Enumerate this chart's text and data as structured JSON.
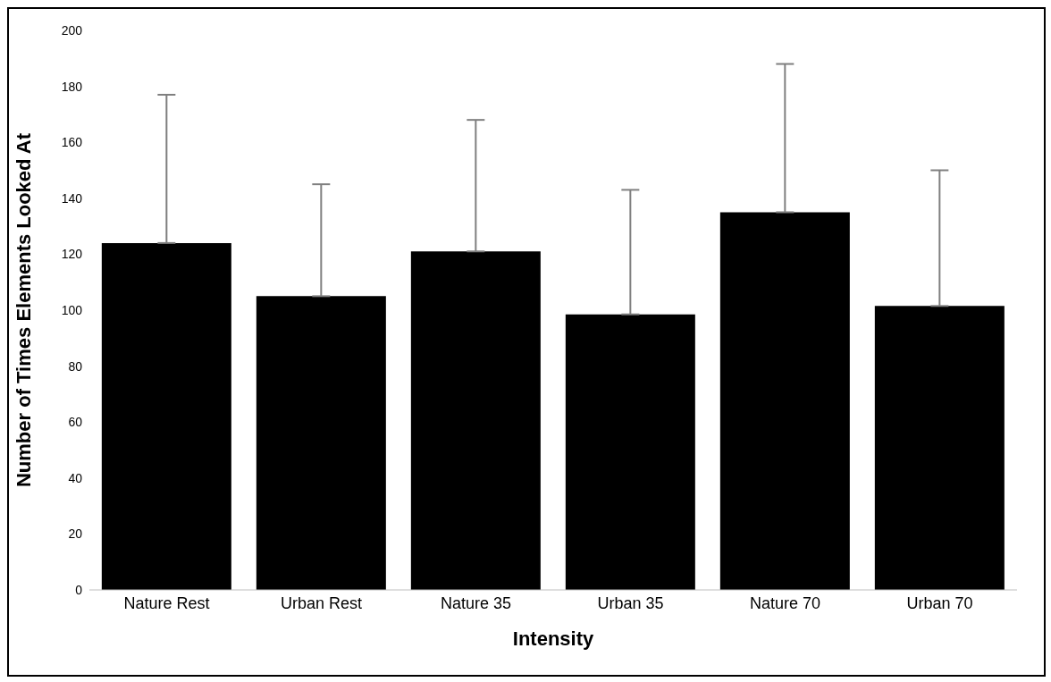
{
  "chart_data": {
    "type": "bar",
    "xlabel": "Intensity",
    "ylabel": "Number of Times Elements Looked At",
    "categories": [
      "Nature Rest",
      "Urban Rest",
      "Nature 35",
      "Urban 35",
      "Nature 70",
      "Urban 70"
    ],
    "values": [
      124,
      105,
      121,
      98.5,
      135,
      101.5
    ],
    "errors": [
      [
        124,
        177
      ],
      [
        105,
        145
      ],
      [
        121,
        168
      ],
      [
        98.5,
        143
      ],
      [
        135,
        188
      ],
      [
        101.5,
        150
      ]
    ],
    "color": "#000000",
    "ylim": [
      0,
      200
    ],
    "yticks": [
      0,
      20,
      40,
      60,
      80,
      100,
      120,
      140,
      160,
      180,
      200
    ],
    "grid": false,
    "legend": false
  }
}
